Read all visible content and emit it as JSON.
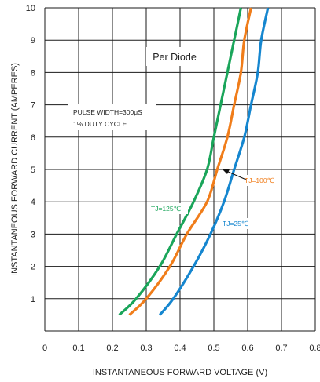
{
  "chart_data": {
    "type": "line",
    "xlabel": "INSTANTANEOUS FORWARD VOLTAGE (V)",
    "ylabel": "INSTANTANEOUS FORWARD CURRENT (AMPERES)",
    "xlim": [
      0,
      0.8
    ],
    "ylim": [
      0,
      10
    ],
    "x_ticks": [
      "0",
      "0.1",
      "0.2",
      "0.3",
      "0.4",
      "0.5",
      "0.6",
      "0.7",
      "0.8"
    ],
    "y_ticks": [
      "1",
      "2",
      "3",
      "4",
      "5",
      "6",
      "7",
      "8",
      "9",
      "10"
    ],
    "grid": true,
    "series": [
      {
        "name": "TJ=125℃",
        "color": "#1aa55a",
        "points": [
          [
            0.22,
            0.5
          ],
          [
            0.27,
            1.0
          ],
          [
            0.34,
            2.0
          ],
          [
            0.39,
            3.0
          ],
          [
            0.44,
            4.0
          ],
          [
            0.48,
            5.0
          ],
          [
            0.5,
            6.0
          ],
          [
            0.52,
            7.0
          ],
          [
            0.54,
            8.0
          ],
          [
            0.56,
            9.0
          ],
          [
            0.58,
            10.0
          ]
        ]
      },
      {
        "name": "TJ=100℃",
        "color": "#f07d1a",
        "points": [
          [
            0.25,
            0.5
          ],
          [
            0.3,
            1.0
          ],
          [
            0.37,
            2.0
          ],
          [
            0.42,
            3.0
          ],
          [
            0.48,
            4.0
          ],
          [
            0.51,
            5.0
          ],
          [
            0.54,
            6.0
          ],
          [
            0.56,
            7.0
          ],
          [
            0.58,
            8.0
          ],
          [
            0.59,
            9.0
          ],
          [
            0.61,
            10.0
          ]
        ]
      },
      {
        "name": "TJ=25℃",
        "color": "#1586cf",
        "points": [
          [
            0.34,
            0.5
          ],
          [
            0.38,
            1.0
          ],
          [
            0.44,
            2.0
          ],
          [
            0.49,
            3.0
          ],
          [
            0.53,
            4.0
          ],
          [
            0.56,
            5.0
          ],
          [
            0.59,
            6.0
          ],
          [
            0.61,
            7.0
          ],
          [
            0.63,
            8.0
          ],
          [
            0.64,
            9.0
          ],
          [
            0.66,
            10.0
          ]
        ]
      }
    ],
    "annotations": {
      "per_diode": "Per Diode",
      "pulse_width": "PULSE WIDTH=300μS",
      "duty_cycle": "1% DUTY CYCLE",
      "tj125": "TJ=125℃",
      "tj100": "TJ=100℃",
      "tj25": "TJ=25℃"
    }
  },
  "colors": {
    "grid": "#1a1a1a",
    "text": "#222222",
    "green": "#1aa55a",
    "orange": "#f07d1a",
    "blue": "#1586cf"
  }
}
